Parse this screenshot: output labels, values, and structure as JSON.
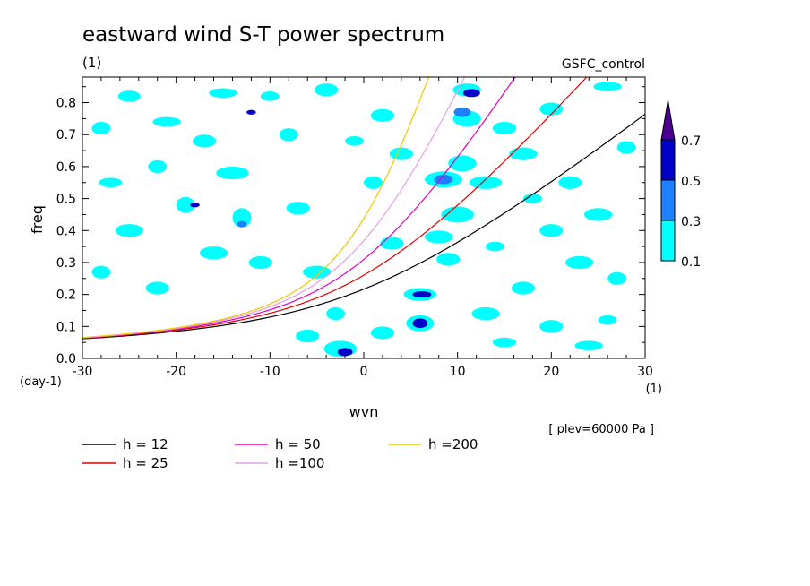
{
  "chart_data": {
    "type": "heatmap",
    "title": "eastward wind S-T power spectrum",
    "subtitle": "(1)",
    "run_label": "GSFC_control",
    "xlabel": "wvn",
    "ylabel": "freq",
    "x_unit": "(1)",
    "y_unit": "(day-1)",
    "level_note": "[ plev=60000 Pa ]",
    "xlim": [
      -30,
      30
    ],
    "ylim": [
      0,
      0.88
    ],
    "x_ticks": [
      -30,
      -20,
      -10,
      0,
      10,
      20,
      30
    ],
    "y_ticks": [
      0.0,
      0.1,
      0.2,
      0.3,
      0.4,
      0.5,
      0.6,
      0.7,
      0.8
    ],
    "x_tick_labels": [
      "-30",
      "-20",
      "-10",
      "0",
      "10",
      "20",
      "30"
    ],
    "y_tick_labels": [
      "0.0",
      "0.1",
      "0.2",
      "0.3",
      "0.4",
      "0.5",
      "0.6",
      "0.7",
      "0.8"
    ],
    "colorbar": {
      "levels": [
        0.1,
        0.3,
        0.5,
        0.7
      ],
      "level_labels": [
        "0.1",
        "0.3",
        "0.5",
        "0.7"
      ],
      "colors": [
        "#00ffff",
        "#1e7fff",
        "#0000c8",
        "#4b0091"
      ]
    },
    "contour_patches": [
      {
        "x": -25.0,
        "y": 0.82,
        "w": 2.4,
        "h": 0.035,
        "level": 1
      },
      {
        "x": -15.0,
        "y": 0.83,
        "w": 3.0,
        "h": 0.03,
        "level": 1
      },
      {
        "x": -10.0,
        "y": 0.82,
        "w": 2.0,
        "h": 0.03,
        "level": 1
      },
      {
        "x": -4.0,
        "y": 0.84,
        "w": 2.5,
        "h": 0.04,
        "level": 1
      },
      {
        "x": -28.0,
        "y": 0.72,
        "w": 2.0,
        "h": 0.04,
        "level": 1
      },
      {
        "x": -21.0,
        "y": 0.74,
        "w": 3.0,
        "h": 0.03,
        "level": 1
      },
      {
        "x": -17.0,
        "y": 0.68,
        "w": 2.5,
        "h": 0.04,
        "level": 1
      },
      {
        "x": -8.0,
        "y": 0.7,
        "w": 2.0,
        "h": 0.04,
        "level": 1
      },
      {
        "x": -27.0,
        "y": 0.55,
        "w": 2.5,
        "h": 0.03,
        "level": 1
      },
      {
        "x": -22.0,
        "y": 0.6,
        "w": 2.0,
        "h": 0.04,
        "level": 1
      },
      {
        "x": -14.0,
        "y": 0.58,
        "w": 3.5,
        "h": 0.04,
        "level": 1
      },
      {
        "x": -19.0,
        "y": 0.48,
        "w": 2.0,
        "h": 0.05,
        "level": 1
      },
      {
        "x": -13.0,
        "y": 0.44,
        "w": 2.0,
        "h": 0.06,
        "level": 1
      },
      {
        "x": -7.0,
        "y": 0.47,
        "w": 2.5,
        "h": 0.04,
        "level": 1
      },
      {
        "x": -25.0,
        "y": 0.4,
        "w": 3.0,
        "h": 0.04,
        "level": 1
      },
      {
        "x": -16.0,
        "y": 0.33,
        "w": 3.0,
        "h": 0.04,
        "level": 1
      },
      {
        "x": -11.0,
        "y": 0.3,
        "w": 2.5,
        "h": 0.04,
        "level": 1
      },
      {
        "x": -28.0,
        "y": 0.27,
        "w": 2.0,
        "h": 0.04,
        "level": 1
      },
      {
        "x": -22.0,
        "y": 0.22,
        "w": 2.5,
        "h": 0.04,
        "level": 1
      },
      {
        "x": -5.0,
        "y": 0.27,
        "w": 3.0,
        "h": 0.04,
        "level": 1
      },
      {
        "x": -3.0,
        "y": 0.14,
        "w": 2.0,
        "h": 0.04,
        "level": 1
      },
      {
        "x": -6.0,
        "y": 0.07,
        "w": 2.5,
        "h": 0.04,
        "level": 1
      },
      {
        "x": -2.5,
        "y": 0.03,
        "w": 3.5,
        "h": 0.05,
        "level": 1
      },
      {
        "x": -2.0,
        "y": 0.02,
        "w": 1.6,
        "h": 0.025,
        "level": 3
      },
      {
        "x": 2.0,
        "y": 0.08,
        "w": 2.5,
        "h": 0.04,
        "level": 1
      },
      {
        "x": 6.0,
        "y": 0.11,
        "w": 3.0,
        "h": 0.05,
        "level": 1
      },
      {
        "x": 6.0,
        "y": 0.11,
        "w": 1.6,
        "h": 0.03,
        "level": 3
      },
      {
        "x": 6.0,
        "y": 0.2,
        "w": 3.5,
        "h": 0.04,
        "level": 1
      },
      {
        "x": 6.2,
        "y": 0.2,
        "w": 2.0,
        "h": 0.02,
        "level": 3
      },
      {
        "x": 9.0,
        "y": 0.31,
        "w": 2.5,
        "h": 0.04,
        "level": 1
      },
      {
        "x": 8.0,
        "y": 0.38,
        "w": 3.0,
        "h": 0.04,
        "level": 1
      },
      {
        "x": 10.0,
        "y": 0.45,
        "w": 3.5,
        "h": 0.05,
        "level": 1
      },
      {
        "x": 8.5,
        "y": 0.56,
        "w": 4.0,
        "h": 0.05,
        "level": 1
      },
      {
        "x": 8.5,
        "y": 0.56,
        "w": 2.0,
        "h": 0.03,
        "level": 2
      },
      {
        "x": 10.5,
        "y": 0.61,
        "w": 3.0,
        "h": 0.05,
        "level": 1
      },
      {
        "x": 13.0,
        "y": 0.55,
        "w": 3.5,
        "h": 0.04,
        "level": 1
      },
      {
        "x": 11.0,
        "y": 0.75,
        "w": 3.0,
        "h": 0.05,
        "level": 1
      },
      {
        "x": 10.5,
        "y": 0.77,
        "w": 1.8,
        "h": 0.03,
        "level": 2
      },
      {
        "x": 11.0,
        "y": 0.84,
        "w": 3.0,
        "h": 0.04,
        "level": 1
      },
      {
        "x": 11.5,
        "y": 0.83,
        "w": 1.8,
        "h": 0.025,
        "level": 3
      },
      {
        "x": 15.0,
        "y": 0.72,
        "w": 2.5,
        "h": 0.04,
        "level": 1
      },
      {
        "x": 17.0,
        "y": 0.64,
        "w": 3.0,
        "h": 0.04,
        "level": 1
      },
      {
        "x": 20.0,
        "y": 0.78,
        "w": 2.5,
        "h": 0.04,
        "level": 1
      },
      {
        "x": 22.0,
        "y": 0.55,
        "w": 2.5,
        "h": 0.04,
        "level": 1
      },
      {
        "x": 25.0,
        "y": 0.45,
        "w": 3.0,
        "h": 0.04,
        "level": 1
      },
      {
        "x": 20.0,
        "y": 0.4,
        "w": 2.5,
        "h": 0.04,
        "level": 1
      },
      {
        "x": 23.0,
        "y": 0.3,
        "w": 3.0,
        "h": 0.04,
        "level": 1
      },
      {
        "x": 27.0,
        "y": 0.25,
        "w": 2.0,
        "h": 0.04,
        "level": 1
      },
      {
        "x": 17.0,
        "y": 0.22,
        "w": 2.5,
        "h": 0.04,
        "level": 1
      },
      {
        "x": 13.0,
        "y": 0.14,
        "w": 3.0,
        "h": 0.04,
        "level": 1
      },
      {
        "x": 20.0,
        "y": 0.1,
        "w": 2.5,
        "h": 0.04,
        "level": 1
      },
      {
        "x": 26.0,
        "y": 0.12,
        "w": 2.0,
        "h": 0.03,
        "level": 1
      },
      {
        "x": 15.0,
        "y": 0.05,
        "w": 2.5,
        "h": 0.03,
        "level": 1
      },
      {
        "x": 24.0,
        "y": 0.04,
        "w": 3.0,
        "h": 0.03,
        "level": 1
      },
      {
        "x": 28.0,
        "y": 0.66,
        "w": 2.0,
        "h": 0.04,
        "level": 1
      },
      {
        "x": 26.0,
        "y": 0.85,
        "w": 3.0,
        "h": 0.03,
        "level": 1
      },
      {
        "x": 4.0,
        "y": 0.64,
        "w": 2.5,
        "h": 0.04,
        "level": 1
      },
      {
        "x": 1.0,
        "y": 0.55,
        "w": 2.0,
        "h": 0.04,
        "level": 1
      },
      {
        "x": 2.0,
        "y": 0.76,
        "w": 2.5,
        "h": 0.04,
        "level": 1
      },
      {
        "x": -1.0,
        "y": 0.68,
        "w": 2.0,
        "h": 0.03,
        "level": 1
      },
      {
        "x": 3.0,
        "y": 0.36,
        "w": 2.5,
        "h": 0.04,
        "level": 1
      },
      {
        "x": 14.0,
        "y": 0.35,
        "w": 2.0,
        "h": 0.03,
        "level": 1
      },
      {
        "x": 18.0,
        "y": 0.5,
        "w": 2.0,
        "h": 0.03,
        "level": 1
      },
      {
        "x": -12.0,
        "y": 0.77,
        "w": 1.0,
        "h": 0.015,
        "level": 3
      },
      {
        "x": -13.0,
        "y": 0.42,
        "w": 1.0,
        "h": 0.02,
        "level": 2
      },
      {
        "x": -18.0,
        "y": 0.48,
        "w": 1.0,
        "h": 0.015,
        "level": 3
      }
    ],
    "series": [
      {
        "name": "h = 12",
        "color": "#000000",
        "equivalent_depth": 12
      },
      {
        "name": "h = 25",
        "color": "#e00000",
        "equivalent_depth": 25
      },
      {
        "name": "h = 50",
        "color": "#e000c0",
        "equivalent_depth": 50
      },
      {
        "name": "h =100",
        "color": "#e0a0e8",
        "equivalent_depth": 100
      },
      {
        "name": "h =200",
        "color": "#f0c800",
        "equivalent_depth": 200
      }
    ]
  }
}
